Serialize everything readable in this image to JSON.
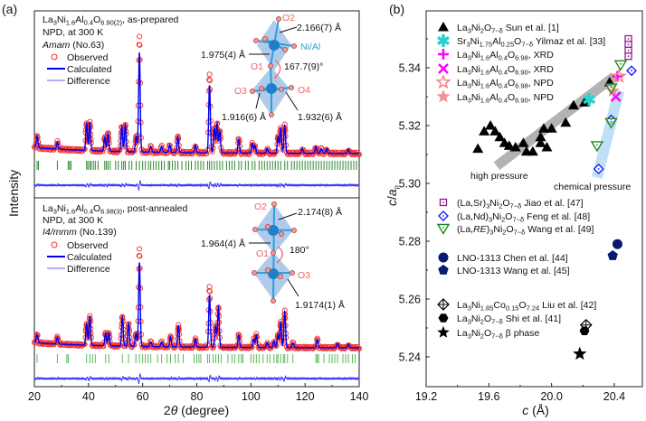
{
  "panel_a": {
    "label": "(a)",
    "ylabel": "Intensity",
    "xlabel": [
      "2",
      "θ",
      " (degree)"
    ],
    "xticks": [
      "20",
      "40",
      "60",
      "80",
      "100",
      "120",
      "140"
    ],
    "top": {
      "title": [
        "La",
        "_3",
        "Ni",
        "_1.6",
        "Al",
        "_0.4",
        "O",
        "_6.90(2)",
        ", as-prepared"
      ],
      "line2": "NPD, at 300 K",
      "line3": [
        "*Amam",
        " (No.63)"
      ],
      "legend": [
        "Observed",
        "Calculated",
        "Difference"
      ],
      "structure": {
        "O2": "O2",
        "ni_al": "Ni/Al",
        "O1": "O1",
        "O3": "O3",
        "O4": "O4",
        "bond_apical_out": "2.166(7) Å",
        "bond_apical_in": "1.975(4) Å",
        "angle": "167.7(9)°",
        "bond_eq1": "1.916(6) Å",
        "bond_eq2": "1.932(6) Å"
      }
    },
    "bottom": {
      "title": [
        "La",
        "_3",
        "Ni",
        "_1.6",
        "Al",
        "_0.4",
        "O",
        "_6.98(3)",
        ", post-annealed"
      ],
      "line2": "NPD, at 300 K",
      "line3": [
        "*I4/mmm",
        " (No.139)"
      ],
      "legend": [
        "Observed",
        "Calculated",
        "Difference"
      ],
      "structure": {
        "O2": "O2",
        "O1": "O1",
        "O3": "O3",
        "bond_apical_out": "2.174(8) Å",
        "bond_apical_in": "1.964(4) Å",
        "angle": "180°",
        "bond_eq": "1.9174(1) Å"
      }
    }
  },
  "chart_data": [
    {
      "type": "line",
      "panel": "(a) top",
      "xlabel": "2θ (degree)",
      "ylabel": "Intensity",
      "xlim": [
        20,
        140
      ],
      "series_names": [
        "Observed",
        "Calculated",
        "Difference"
      ],
      "peaks_2theta_relative_intensity": [
        [
          21,
          0.12
        ],
        [
          28.5,
          0.07
        ],
        [
          39.3,
          0.27
        ],
        [
          40.5,
          0.28
        ],
        [
          46,
          0.14
        ],
        [
          47.2,
          0.18
        ],
        [
          52.3,
          0.25
        ],
        [
          53.6,
          0.27
        ],
        [
          57.6,
          0.15
        ],
        [
          58.8,
          1.0
        ],
        [
          63,
          0.06
        ],
        [
          67,
          0.06
        ],
        [
          70,
          0.08
        ],
        [
          73,
          0.16
        ],
        [
          79.5,
          0.08
        ],
        [
          84.7,
          0.68
        ],
        [
          86.5,
          0.25
        ],
        [
          87.5,
          0.3
        ],
        [
          88.5,
          0.22
        ],
        [
          95.5,
          0.14
        ],
        [
          100.5,
          0.1
        ],
        [
          101.5,
          0.08
        ],
        [
          106,
          0.05
        ],
        [
          110,
          0.17
        ],
        [
          111,
          0.25
        ],
        [
          112.5,
          0.28
        ],
        [
          119,
          0.05
        ],
        [
          124,
          0.07
        ],
        [
          126,
          0.05
        ],
        [
          128,
          0.05
        ],
        [
          136,
          0.04
        ]
      ],
      "bragg_ticks": [
        21,
        21.5,
        28.5,
        32.5,
        33,
        33.5,
        39.3,
        39.8,
        40.5,
        41,
        41.8,
        42.5,
        43.5,
        46,
        46.6,
        47.2,
        48,
        50,
        51,
        52.3,
        53,
        53.6,
        55,
        56,
        57.6,
        58.8,
        60,
        61,
        62.2,
        63,
        64,
        65,
        66,
        67,
        68,
        69.5,
        70,
        71,
        72,
        73,
        74.5,
        76,
        77,
        78,
        79.5,
        80.5,
        81.5,
        82.5,
        84,
        84.7,
        85.5,
        86.5,
        87.5,
        88.5,
        89.5,
        91,
        92,
        93,
        94,
        95.5,
        96.5,
        98,
        99,
        100.5,
        101.5,
        103,
        104,
        105,
        106,
        107,
        108,
        109,
        110,
        111,
        112.5,
        113.5,
        115,
        116,
        117,
        118,
        119,
        120,
        121,
        122,
        123,
        124,
        125,
        126,
        127,
        128,
        129,
        130,
        131,
        132,
        133,
        134,
        135,
        136,
        137,
        138,
        139
      ]
    },
    {
      "type": "line",
      "panel": "(a) bottom",
      "xlabel": "2θ (degree)",
      "ylabel": "Intensity",
      "xlim": [
        20,
        140
      ],
      "series_names": [
        "Observed",
        "Calculated",
        "Difference"
      ],
      "peaks_2theta_relative_intensity": [
        [
          21,
          0.1
        ],
        [
          28.5,
          0.08
        ],
        [
          39.3,
          0.25
        ],
        [
          40.5,
          0.34
        ],
        [
          46.3,
          0.15
        ],
        [
          47.5,
          0.15
        ],
        [
          52.5,
          0.35
        ],
        [
          54.8,
          0.27
        ],
        [
          57.5,
          0.15
        ],
        [
          58.8,
          1.0
        ],
        [
          63,
          0.06
        ],
        [
          67,
          0.06
        ],
        [
          70.3,
          0.12
        ],
        [
          73.2,
          0.25
        ],
        [
          79.5,
          0.1
        ],
        [
          84.7,
          0.62
        ],
        [
          87,
          0.25
        ],
        [
          88,
          0.48
        ],
        [
          95.5,
          0.15
        ],
        [
          101,
          0.1
        ],
        [
          102,
          0.15
        ],
        [
          106,
          0.06
        ],
        [
          108.5,
          0.08
        ],
        [
          110,
          0.15
        ],
        [
          111,
          0.3
        ],
        [
          112.5,
          0.43
        ],
        [
          115.5,
          0.06
        ],
        [
          124.5,
          0.1
        ],
        [
          132,
          0.05
        ],
        [
          136,
          0.04
        ]
      ],
      "bragg_ticks": [
        21,
        28.5,
        32,
        32.5,
        39.3,
        40.5,
        41.5,
        42.5,
        46.3,
        47.5,
        52.5,
        54.8,
        57.5,
        58.8,
        60,
        61,
        62,
        63,
        65.5,
        67,
        69,
        70.3,
        72,
        73.2,
        75,
        79,
        80,
        80.8,
        81.5,
        84,
        84.7,
        86,
        87,
        88,
        89,
        91.5,
        93,
        94,
        95.5,
        96.5,
        97,
        100,
        101,
        102,
        103,
        104.5,
        106,
        107,
        108.5,
        109.5,
        110,
        111,
        112,
        112.5,
        113.5,
        115.5,
        124,
        124.5,
        125,
        127,
        129,
        130,
        131,
        132,
        134,
        135,
        136,
        137.5,
        138.5
      ]
    },
    {
      "type": "scatter",
      "panel": "(b)",
      "label": "(b)",
      "xlabel": "c (Å)",
      "ylabel": "c/a_p",
      "xlim": [
        19.2,
        20.58
      ],
      "ylim": [
        5.23,
        5.36
      ],
      "xticks": [
        "19.2",
        "19.6",
        "20.0",
        "20.4"
      ],
      "yticks": [
        "5.24",
        "5.26",
        "5.28",
        "5.30",
        "5.32",
        "5.34"
      ],
      "annotations": [
        "high pressure",
        "chemical pressure"
      ],
      "bands": [
        {
          "label": "high pressure",
          "color": "#9a9a9a",
          "from": [
            19.65,
            5.306
          ],
          "to": [
            20.4,
            5.337
          ]
        },
        {
          "label": "chemical pressure",
          "color": "#bfe0f5",
          "from": [
            20.29,
            5.302
          ],
          "to": [
            20.43,
            5.332
          ]
        }
      ],
      "series": [
        {
          "name": [
            "La",
            "_3",
            "Ni",
            "_2",
            "O",
            "_7−δ",
            " Sun et al. [1]"
          ],
          "marker": "triangle",
          "color": "#000000",
          "points": [
            [
              19.53,
              5.312
            ],
            [
              19.61,
              5.32
            ],
            [
              19.57,
              5.318
            ],
            [
              19.64,
              5.318
            ],
            [
              19.67,
              5.316
            ],
            [
              19.7,
              5.314
            ],
            [
              19.73,
              5.313
            ],
            [
              19.77,
              5.3125
            ],
            [
              19.82,
              5.314
            ],
            [
              19.84,
              5.311
            ],
            [
              19.88,
              5.311
            ],
            [
              19.93,
              5.314
            ],
            [
              19.93,
              5.316
            ],
            [
              19.97,
              5.3125
            ],
            [
              19.95,
              5.319
            ],
            [
              20.0,
              5.319
            ],
            [
              20.09,
              5.321
            ],
            [
              20.14,
              5.327
            ],
            [
              20.21,
              5.328
            ],
            [
              20.37,
              5.335
            ]
          ]
        },
        {
          "name": [
            "Sr",
            "_3",
            "Ni",
            "_1.75",
            "Al",
            "_0.25",
            "O",
            "_7−δ",
            " Yilmaz et al. [33]"
          ],
          "marker": "asterisk",
          "color": "#2ad0d0",
          "points": [
            [
              20.24,
              5.329
            ]
          ]
        },
        {
          "name": [
            "La",
            "_3",
            "Ni",
            "_1.6",
            "Al",
            "_0.4",
            "O",
            "_6.98",
            ", XRD"
          ],
          "marker": "plus",
          "color": "#ff00ff",
          "points": [
            [
              20.42,
              5.337
            ]
          ]
        },
        {
          "name": [
            "La",
            "_3",
            "Ni",
            "_1.6",
            "Al",
            "_0.4",
            "O",
            "_6.90",
            ", XRD"
          ],
          "marker": "cross",
          "color": "#ff00ff",
          "points": [
            [
              20.41,
              5.33
            ]
          ]
        },
        {
          "name": [
            "La",
            "_3",
            "Ni",
            "_1.6",
            "Al",
            "_0.4",
            "O",
            "_6.98",
            ", NPD"
          ],
          "marker": "star-open",
          "color": "#f08080",
          "points": [
            [
              20.43,
              5.337
            ]
          ]
        },
        {
          "name": [
            "La",
            "_3",
            "Ni",
            "_1.6",
            "Al",
            "_0.4",
            "O",
            "_6.90",
            ", NPD"
          ],
          "marker": "star",
          "color": "#f08080",
          "points": [
            [
              20.39,
              5.332
            ]
          ]
        },
        {
          "name": [
            "(La,Sr)",
            "_3",
            "Ni",
            "_2",
            "O",
            "_7−δ",
            " Jiao et al. [47]"
          ],
          "marker": "square-dot",
          "color": "#8b1a8b",
          "points": [
            [
              20.49,
              5.35
            ],
            [
              20.49,
              5.348
            ],
            [
              20.49,
              5.346
            ],
            [
              20.49,
              5.344
            ]
          ]
        },
        {
          "name": [
            "(La,Nd)",
            "_3",
            "Ni",
            "_2",
            "O",
            "_7−δ",
            " Feng et al. [48]"
          ],
          "marker": "diamond-dot",
          "color": "#1a1aff",
          "points": [
            [
              20.51,
              5.339
            ],
            [
              20.38,
              5.322
            ],
            [
              20.3,
              5.305
            ]
          ]
        },
        {
          "name": [
            "(La,",
            "*RE",
            ")",
            "_3",
            "Ni",
            "_2",
            "O",
            "_7−δ",
            " Wang et al. [49]"
          ],
          "marker": "triangle-down-dot",
          "color": "#1a8a1a",
          "points": [
            [
              20.44,
              5.341
            ],
            [
              20.38,
              5.333
            ],
            [
              20.38,
              5.321
            ],
            [
              20.29,
              5.313
            ]
          ]
        },
        {
          "name": [
            "LNO-1313 Chen et al. [44]"
          ],
          "marker": "circle",
          "color": "#0a1a70",
          "points": [
            [
              20.42,
              5.279
            ]
          ]
        },
        {
          "name": [
            "LNO-1313 Wang et al. [45]"
          ],
          "marker": "pentagon",
          "color": "#0a1a70",
          "points": [
            [
              20.39,
              5.275
            ]
          ]
        },
        {
          "name": [
            "La",
            "_3",
            "Ni",
            "_1.85",
            "Co",
            "_0.15",
            "O",
            "_7.24",
            " Liu et al. [42]"
          ],
          "marker": "diamond-cross",
          "color": "#000000",
          "points": [
            [
              20.22,
              5.251
            ]
          ]
        },
        {
          "name": [
            "La",
            "_3",
            "Ni",
            "_2",
            "O",
            "_7−δ",
            " Shi et al. [41]"
          ],
          "marker": "hexagon",
          "color": "#000000",
          "points": [
            [
              20.21,
              5.249
            ]
          ]
        },
        {
          "name": [
            "La",
            "_3",
            "Ni",
            "_2",
            "O",
            "_7−δ",
            " β phase"
          ],
          "marker": "star",
          "color": "#000000",
          "points": [
            [
              20.18,
              5.241
            ]
          ]
        }
      ]
    }
  ],
  "colors": {
    "observed": "#f03030",
    "calculated": "#0000ee",
    "difference": "#3c3cff",
    "bragg_top": "#2a8a2a",
    "bragg_bottom": "#5cb85c",
    "oxygen_label": "#f06464",
    "ni_label": "#2a9fe0",
    "octahedron": "#6fa0d8"
  }
}
